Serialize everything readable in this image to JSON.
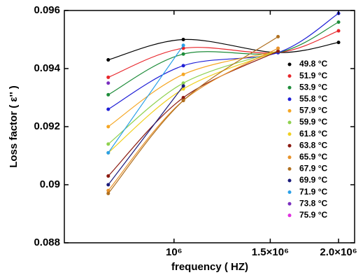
{
  "chart_data": {
    "type": "line",
    "x_label": "frequency ( HZ)",
    "y_label": "Loss factor  ( ε'' )",
    "x": [
      758000,
      1040000,
      1550000,
      2000000
    ],
    "xlim": [
      630000,
      2140000
    ],
    "log_x": true,
    "xticks": [
      {
        "value": 1000000,
        "label": "10⁶"
      },
      {
        "value": 1500000,
        "label": "1.5×10⁶"
      },
      {
        "value": 2000000,
        "label": "2.0×10⁶"
      }
    ],
    "ylim": [
      0.088,
      0.096
    ],
    "yticks": [
      0.088,
      0.09,
      0.092,
      0.094,
      0.096
    ],
    "series": [
      {
        "name": "49.8 °C",
        "color": "#000000",
        "values": [
          0.0943,
          0.095,
          0.09455,
          0.0949
        ]
      },
      {
        "name": "51.9 °C",
        "color": "#e8262b",
        "values": [
          0.0937,
          0.0947,
          0.09455,
          0.0953
        ]
      },
      {
        "name": "53.9 °C",
        "color": "#1e8c3a",
        "values": [
          0.0931,
          0.0945,
          0.09455,
          0.0956
        ]
      },
      {
        "name": "55.8 °C",
        "color": "#1f1fd6",
        "values": [
          0.0926,
          0.0941,
          0.09455,
          0.0959
        ]
      },
      {
        "name": "57.9 °C",
        "color": "#f5a623",
        "values": [
          0.092,
          0.0938,
          0.0946,
          null
        ]
      },
      {
        "name": "59.9 °C",
        "color": "#8fd14f",
        "values": [
          0.0914,
          0.0935,
          0.0946,
          null
        ]
      },
      {
        "name": "61.8 °C",
        "color": "#f0d020",
        "values": [
          0.0911,
          0.0933,
          0.0946,
          null
        ]
      },
      {
        "name": "63.8 °C",
        "color": "#8b1a10",
        "values": [
          0.0903,
          0.093,
          0.0946,
          null
        ]
      },
      {
        "name": "65.9 °C",
        "color": "#e8922a",
        "values": [
          0.0898,
          0.0929,
          0.0947,
          null
        ]
      },
      {
        "name": "67.9 °C",
        "color": "#b07020",
        "values": [
          0.0897,
          0.0929,
          0.0951,
          null
        ]
      },
      {
        "name": "69.9 °C",
        "color": "#1a1a7a",
        "values": [
          0.09,
          0.0934,
          null,
          null
        ]
      },
      {
        "name": "71.9 °C",
        "color": "#2aa0e8",
        "values": [
          0.0911,
          0.0948,
          null,
          null
        ]
      },
      {
        "name": "73.8 °C",
        "color": "#7b2fbf",
        "values": [
          0.0935,
          null,
          null,
          null
        ]
      },
      {
        "name": "75.9 °C",
        "color": "#e030e0",
        "values": [
          null,
          null,
          null,
          null
        ]
      }
    ]
  }
}
